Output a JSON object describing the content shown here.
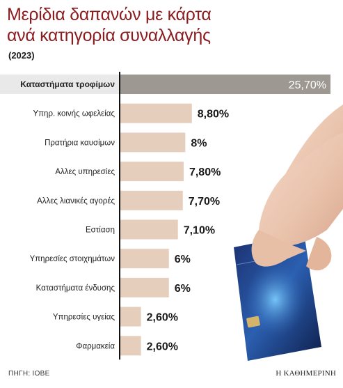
{
  "title_line1": "Μερίδια δαπανών με κάρτα",
  "title_line2": "ανά κατηγορία συναλλαγής",
  "subtitle": "(2023)",
  "source": "ΠΗΓΗ: ΙΟΒΕ",
  "brand": "Η ΚΑΘΗΜΕΡΙΝΗ",
  "colors": {
    "title": "#8b1c1f",
    "highlight_bar": "#9e9893",
    "bar": "#e6cebd",
    "highlight_label_bg": "#e9e9e9"
  },
  "chart_data": {
    "type": "bar",
    "orientation": "horizontal",
    "title": "Μερίδια δαπανών με κάρτα ανά κατηγορία συναλλαγής",
    "categories": [
      "Καταστήματα τροφίμων",
      "Υπηρ. κοινής ωφελείας",
      "Πρατήρια καυσίμων",
      "Αλλες υπηρεσίες",
      "Αλλες λιανικές αγορές",
      "Εστίαση",
      "Υπηρεσίες στοιχημάτων",
      "Καταστήματα ένδυσης",
      "Υπηρεσίες υγείας",
      "Φαρμακεία"
    ],
    "values": [
      25.7,
      8.8,
      8,
      7.8,
      7.7,
      7.1,
      6,
      6,
      2.6,
      2.6
    ],
    "value_labels": [
      "25,70%",
      "8,80%",
      "8%",
      "7,80%",
      "7,70%",
      "7,10%",
      "6%",
      "6%",
      "2,60%",
      "2,60%"
    ],
    "highlight_index": 0,
    "unit": "%",
    "xlim": [
      0,
      25.7
    ]
  }
}
